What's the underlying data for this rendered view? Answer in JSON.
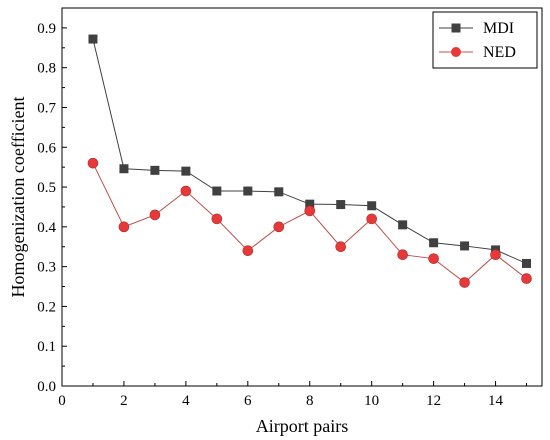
{
  "chart_data": {
    "type": "line",
    "xlabel": "Airport pairs",
    "ylabel": "Homogenization coefficient",
    "xlim": [
      0,
      15.5
    ],
    "ylim": [
      0,
      0.95
    ],
    "xticks": [
      0,
      2,
      4,
      6,
      8,
      10,
      12,
      14
    ],
    "xtick_labels": [
      "0",
      "2",
      "4",
      "6",
      "8",
      "10",
      "12",
      "14"
    ],
    "yticks": [
      0,
      0.1,
      0.2,
      0.3,
      0.4,
      0.5,
      0.6,
      0.7,
      0.8,
      0.9
    ],
    "ytick_labels": [
      "0.0",
      "0.1",
      "0.2",
      "0.3",
      "0.4",
      "0.5",
      "0.6",
      "0.7",
      "0.8",
      "0.9"
    ],
    "grid": false,
    "legend_position": "top-right",
    "x": [
      1,
      2,
      3,
      4,
      5,
      6,
      7,
      8,
      9,
      10,
      11,
      12,
      13,
      14,
      15
    ],
    "series": [
      {
        "name": "MDI",
        "marker": "square",
        "color": "#404040",
        "values": [
          0.872,
          0.546,
          0.542,
          0.54,
          0.49,
          0.49,
          0.488,
          0.457,
          0.456,
          0.453,
          0.405,
          0.36,
          0.352,
          0.342,
          0.308
        ]
      },
      {
        "name": "NED",
        "marker": "circle",
        "color": "#e8393a",
        "line_color": "#c0504d",
        "values": [
          0.56,
          0.4,
          0.43,
          0.49,
          0.42,
          0.34,
          0.4,
          0.44,
          0.35,
          0.42,
          0.33,
          0.32,
          0.26,
          0.33,
          0.27
        ]
      }
    ]
  }
}
